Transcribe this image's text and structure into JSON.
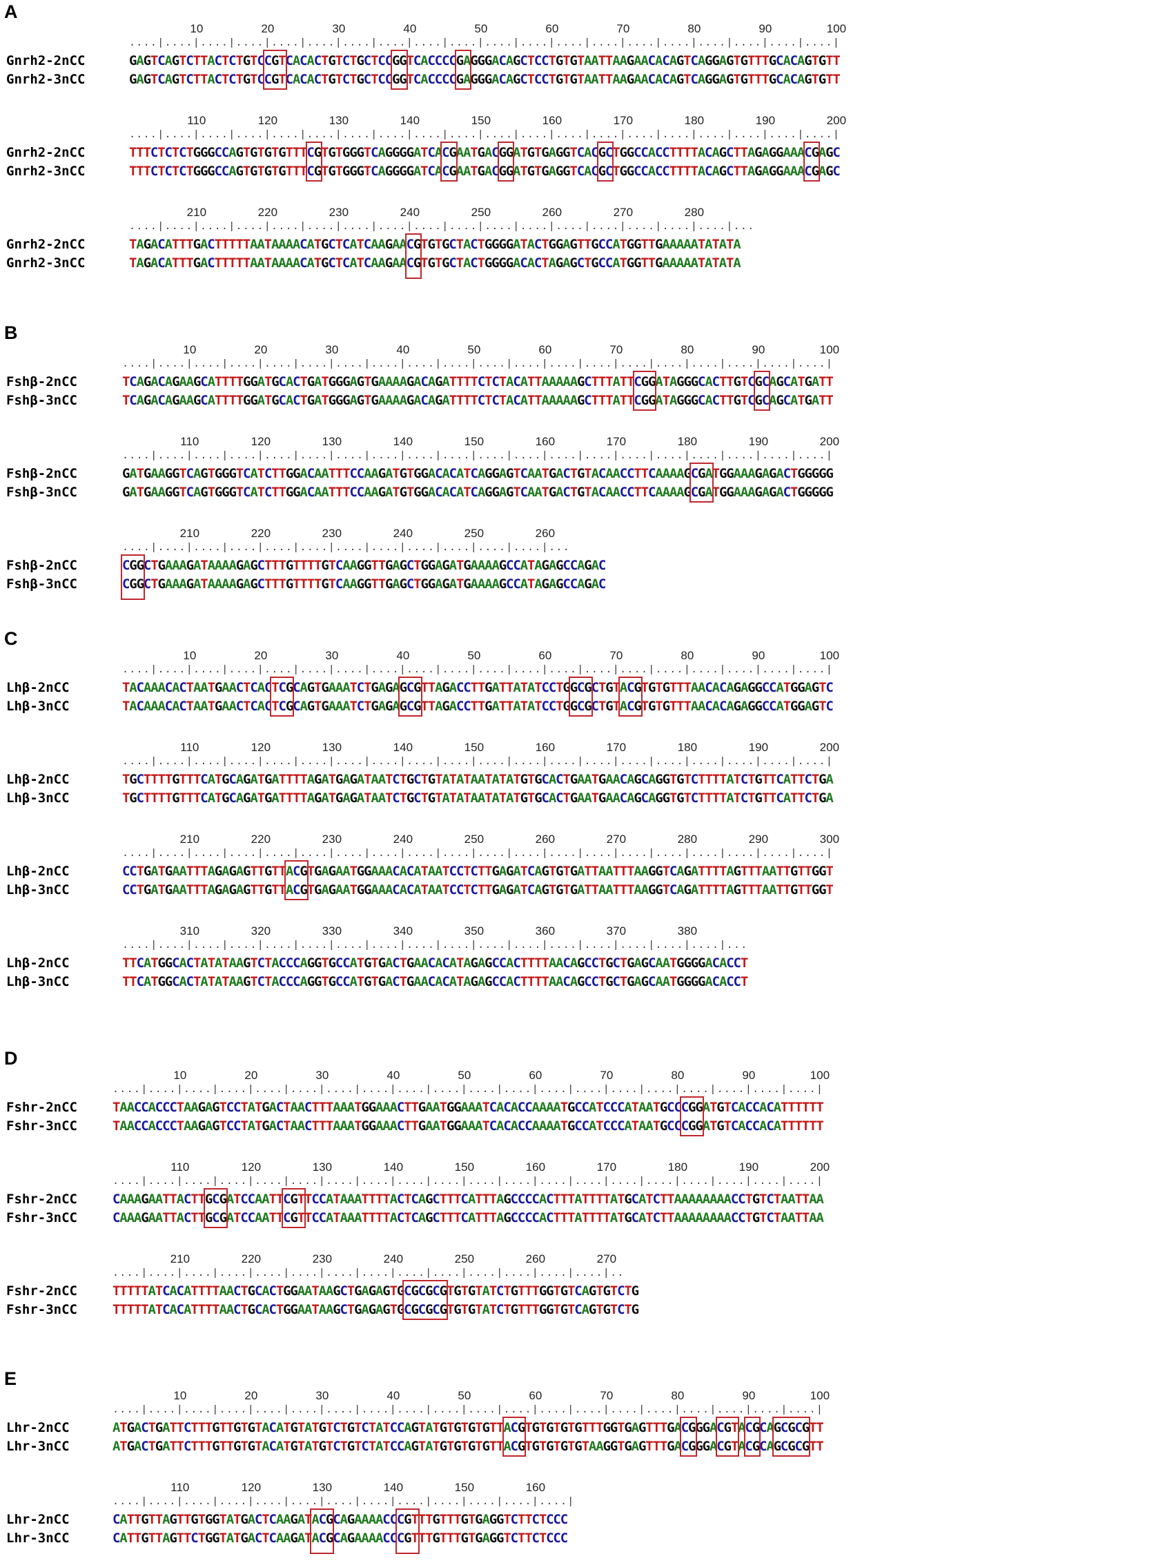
{
  "colors": {
    "A": "#1f7a1f",
    "C": "#1a1a9e",
    "G": "#111111",
    "T": "#c41a1a",
    "box": "#c0262d"
  },
  "panels": [
    {
      "label": "A",
      "names": [
        "Gnrh2-2nCC",
        "Gnrh2-3nCC"
      ],
      "blocks": [
        {
          "ticks": [
            "10",
            "20",
            "30",
            "40",
            "50",
            "60",
            "70",
            "80",
            "90",
            "100"
          ],
          "ruler": "....|....|....|....|....|....|....|....|....|....|....|....|....|....|....|....|....|....|....|....|",
          "seqs": [
            "GAGTCAGTCTTACTCTGTCCGTCACACTGTCTGCTCCGGTCACCCCGAGGGACAGCTCCTGTGTAATTAAGAACACAGTCAGGAGTGTTTGCACAGTGTT",
            "GAGTCAGTCTTACTCTGTCCGTCACACTGTCTGCTCCGGTCACCCCGAGGGACAGCTCCTGTGTAATTAAGAACACAGTCAGGAGTGTTTGCACAGTGTT"
          ],
          "boxes": [
            [
              19,
              3
            ],
            [
              37,
              2
            ],
            [
              46,
              2
            ]
          ]
        },
        {
          "ticks": [
            "110",
            "120",
            "130",
            "140",
            "150",
            "160",
            "170",
            "180",
            "190",
            "200"
          ],
          "ruler": "....|....|....|....|....|....|....|....|....|....|....|....|....|....|....|....|....|....|....|....|",
          "seqs": [
            "TTTCTCTCTGGGCCAGTGTGTGTTTCGTGTGGGTCAGGGGATCACGAATGACGGATGTGAGGTCACGCTGGCCACCTTTTACAGCTTAGAGGAAACGAGC",
            "TTTCTCTCTGGGCCAGTGTGTGTTTCGTGTGGGTCAGGGGATCACGAATGACGGATGTGAGGTCACGCTGGCCACCTTTTACAGCTTAGAGGAAACGAGC"
          ],
          "boxes": [
            [
              25,
              2
            ],
            [
              44,
              2
            ],
            [
              52,
              2
            ],
            [
              66,
              2
            ],
            [
              95,
              2
            ]
          ]
        },
        {
          "ticks": [
            "210",
            "220",
            "230",
            "240",
            "250",
            "260",
            "270",
            "280"
          ],
          "ruler": "....|....|....|....|....|....|....|....|....|....|....|....|....|....|....|....|....|...",
          "seqs": [
            "TAGACATTTGACTTTTTAATAAAACATGCTCATCAAGAACGTGTGCTACTGGGGATACTGGAGTTGCCATGGTTGAAAAATATATA",
            "TAGACATTTGACTTTTTAATAAAACATGCTCATCAAGAACGTGTGCTACTGGGGACACTAGAGCTGCCATGGTTGAAAAATATATA"
          ],
          "boxes": [
            [
              39,
              2
            ]
          ]
        }
      ]
    },
    {
      "label": "B",
      "names": [
        "Fshβ-2nCC",
        "Fshβ-3nCC"
      ],
      "blocks": [
        {
          "ticks": [
            "10",
            "20",
            "30",
            "40",
            "50",
            "60",
            "70",
            "80",
            "90",
            "100"
          ],
          "ruler": "....|....|....|....|....|....|....|....|....|....|....|....|....|....|....|....|....|....|....|....|",
          "seqs": [
            "TCAGACAGAAGCATTTTGGATGCACTGATGGGAGTGAAAAGACAGATTTTCTCTACATTAAAAAGCTTTATTCGGATAGGGCACTTGTCGCAGCATGATT",
            "TCAGACAGAAGCATTTTGGATGCACTGATGGGAGTGAAAAGACAGATTTTCTCTACATTAAAAAGCTTTATTCGGATAGGGCACTTGTCGCAGCATGATT"
          ],
          "boxes": [
            [
              72,
              3
            ],
            [
              89,
              2
            ]
          ]
        },
        {
          "ticks": [
            "110",
            "120",
            "130",
            "140",
            "150",
            "160",
            "170",
            "180",
            "190",
            "200"
          ],
          "ruler": "....|....|....|....|....|....|....|....|....|....|....|....|....|....|....|....|....|....|....|....|",
          "seqs": [
            "GATGAAGGTCAGTGGGTCATCTTGGACAATTTCCAAGATGTGGACACATCAGGAGTCAATGACTGTACAACCTTCAAAAGCGATGGAAAGAGACTGGGGG",
            "GATGAAGGTCAGTGGGTCATCTTGGACAATTTCCAAGATGTGGACACATCAGGAGTCAATGACTGTACAACCTTCAAAAGCGATGGAAAGAGACTGGGGG"
          ],
          "boxes": [
            [
              80,
              3
            ]
          ]
        },
        {
          "ticks": [
            "210",
            "220",
            "230",
            "240",
            "250",
            "260"
          ],
          "ruler": "....|....|....|....|....|....|....|....|....|....|....|....|...",
          "seqs": [
            "CGGCTGAAAGATAAAAGAGCTTTGTTTTGTCAAGGTTGAGCTGGAGATGAAAAGCCATAGAGCCAGAC",
            "CGGCTGAAAGATAAAAGAGCTTTGTTTTGTCAAGGTTGAGCTGGAGATGAAAAGCCATAGAGCCAGAC"
          ],
          "boxes": [
            [
              0,
              3
            ]
          ]
        }
      ]
    },
    {
      "label": "C",
      "names": [
        "Lhβ-2nCC",
        "Lhβ-3nCC"
      ],
      "blocks": [
        {
          "ticks": [
            "10",
            "20",
            "30",
            "40",
            "50",
            "60",
            "70",
            "80",
            "90",
            "100"
          ],
          "ruler": "....|....|....|....|....|....|....|....|....|....|....|....|....|....|....|....|....|....|....|....|",
          "seqs": [
            "TACAAACACTAATGAACTCACTCGCAGTGAAATCTGAGAGCGTTAGACCTTGATTATATCCTGGCGCTGTACGTGTGTTTAACACAGAGGCCATGGAGTC",
            "TACAAACACTAATGAACTCACTCGCAGTGAAATCTGAGAGCGTTAGACCTTGATTATATCCTGGCGCTGTACGTGTGTTTAACACAGAGGCCATGGAGTC"
          ],
          "boxes": [
            [
              21,
              3
            ],
            [
              39,
              3
            ],
            [
              63,
              3
            ],
            [
              70,
              3
            ]
          ]
        },
        {
          "ticks": [
            "110",
            "120",
            "130",
            "140",
            "150",
            "160",
            "170",
            "180",
            "190",
            "200"
          ],
          "ruler": "....|....|....|....|....|....|....|....|....|....|....|....|....|....|....|....|....|....|....|....|",
          "seqs": [
            "TGCTTTTGTTTCATGCAGATGATTTTAGATGAGATAATCTGCTGTATATAATATATGTGCACTGAATGAACAGCAGGTGTCTTTTATCTGTTCATTCTGA",
            "TGCTTTTGTTTCATGCAGATGATTTTAGATGAGATAATCTGCTGTATATAATATATGTGCACTGAATGAACAGCAGGTGTCTTTTATCTGTTCATTCTGA"
          ],
          "boxes": []
        },
        {
          "ticks": [
            "210",
            "220",
            "230",
            "240",
            "250",
            "260",
            "270",
            "280",
            "290",
            "300"
          ],
          "ruler": "....|....|....|....|....|....|....|....|....|....|....|....|....|....|....|....|....|....|....|....|",
          "seqs": [
            "CCTGATGAATTTAGAGAGTTGTTACGTGAGAATGGAAACACATAATCCTCTTGAGATCAGTGTGATTAATTTAAGGTCAGATTTTAGTTTAATTGTTGGT",
            "CCTGATGAATTTAGAGAGTTGTTACGTGAGAATGGAAACACATAATCCTCTTGAGATCAGTGTGATTAATTTAAGGTCAGATTTTAGTTTAATTGTTGGT"
          ],
          "boxes": [
            [
              23,
              3
            ]
          ]
        },
        {
          "ticks": [
            "310",
            "320",
            "330",
            "340",
            "350",
            "360",
            "370",
            "380"
          ],
          "ruler": "....|....|....|....|....|....|....|....|....|....|....|....|....|....|....|....|....|...",
          "seqs": [
            "TTCATGGCACTATATAAGTCTACCCAGGTGCCATGTGACTGAACACATAGAGCCACTTTTAACAGCCTGCTGAGCAATGGGGACACCT",
            "TTCATGGCACTATATAAGTCTACCCAGGTGCCATGTGACTGAACACATAGAGCCACTTTTAACAGCCTGCTGAGCAATGGGGACACCT"
          ],
          "boxes": []
        }
      ]
    },
    {
      "label": "D",
      "names": [
        "Fshr-2nCC",
        "Fshr-3nCC"
      ],
      "blocks": [
        {
          "ticks": [
            "10",
            "20",
            "30",
            "40",
            "50",
            "60",
            "70",
            "80",
            "90",
            "100"
          ],
          "ruler": "....|....|....|....|....|....|....|....|....|....|....|....|....|....|....|....|....|....|....|....|",
          "seqs": [
            "TAACCACCCTAAGAGTCCTATGACTAACTTTAAATGGAAACTTGAATGGAAATCACACCAAAATGCCATCCCATAATGCCCGGATGTCACCACATTTTTT",
            "TAACCACCCTAAGAGTCCTATGACTAACTTTAAATGGAAACTTGAATGGAAATCACACCAAAATGCCATCCCATAATGCCCGGATGTCACCACATTTTTT"
          ],
          "boxes": [
            [
              80,
              3
            ]
          ]
        },
        {
          "ticks": [
            "110",
            "120",
            "130",
            "140",
            "150",
            "160",
            "170",
            "180",
            "190",
            "200"
          ],
          "ruler": "....|....|....|....|....|....|....|....|....|....|....|....|....|....|....|....|....|....|....|....|",
          "seqs": [
            "CAAAGAATTACTTGCGATCCAATTCGTTCCATAAATTTTACTCAGCTTTCATTTAGCCCCACTTTATTTTATGCATCTTAAAAAAAACCTGTCTAATTAA",
            "CAAAGAATTACTTGCGATCCAATTCGTTCCATAAATTTTACTCAGCTTTCATTTAGCCCCACTTTATTTTATGCATCTTAAAAAAAACCTGTCTAATTAA"
          ],
          "boxes": [
            [
              13,
              3
            ],
            [
              24,
              3
            ]
          ]
        },
        {
          "ticks": [
            "210",
            "220",
            "230",
            "240",
            "250",
            "260",
            "270"
          ],
          "ruler": "....|....|....|....|....|....|....|....|....|....|....|....|....|....|..",
          "seqs": [
            "TTTTTATCACATTTTAACTGCACTGGAATAAGCTGAGAGTGCGCGCGTGTGTATCTGTTTGGTGTCAGTGTCTG",
            "TTTTTATCACATTTTAACTGCACTGGAATAAGCTGAGAGTGCGCGCGTGTGTATCTGTTTGGTGTCAGTGTCTG"
          ],
          "boxes": [
            [
              41,
              6
            ]
          ]
        }
      ]
    },
    {
      "label": "E",
      "names": [
        "Lhr-2nCC",
        "Lhr-3nCC"
      ],
      "blocks": [
        {
          "ticks": [
            "10",
            "20",
            "30",
            "40",
            "50",
            "60",
            "70",
            "80",
            "90",
            "100"
          ],
          "ruler": "....|....|....|....|....|....|....|....|....|....|....|....|....|....|....|....|....|....|....|....|",
          "seqs": [
            "ATGACTGATTCTTTGTTGTGTACATGTATGTCTGTCTATCCAGTATGTGTGTGTTACGTGTGTGTGTTTGGTGAGTTTGACGGGACGTACGCAGCGCGTT",
            "ATGACTGATTCTTTGTTGTGTACATGTATGTCTGTCTATCCAGTATGTGTGTGTTACGTGTGTGTGTAAGGTGAGTTTGACGGGACGTACGCAGCGCGTT"
          ],
          "boxes": [
            [
              55,
              3
            ],
            [
              80,
              2
            ],
            [
              85,
              3
            ],
            [
              89,
              2
            ],
            [
              93,
              5
            ]
          ]
        },
        {
          "ticks": [
            "110",
            "120",
            "130",
            "140",
            "150",
            "160"
          ],
          "ruler": "....|....|....|....|....|....|....|....|....|....|....|....|....|",
          "seqs": [
            "CATTGTTAGTTGTGGTATGACTCAAGATACGCAGAAAACCCGTTTGTTTGTGAGGTCTTCTCCC",
            "CATTGTTAGTTCTGGTATGACTCAAGATACGCAGAAAACCCGTTTGTTTGTGAGGTCTTCTCCC"
          ],
          "boxes": [
            [
              28,
              3
            ],
            [
              40,
              3
            ]
          ]
        }
      ]
    }
  ]
}
